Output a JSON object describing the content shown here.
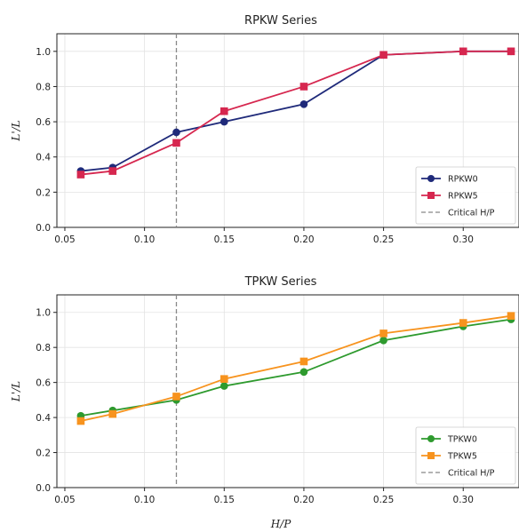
{
  "chart_data": [
    {
      "type": "line",
      "title": "RPKW Series",
      "xlabel": "",
      "ylabel": "L'/L",
      "xlim": [
        0.045,
        0.335
      ],
      "ylim": [
        0.0,
        1.1
      ],
      "x_ticks": [
        "0.05",
        "0.10",
        "0.15",
        "0.20",
        "0.25",
        "0.30"
      ],
      "y_ticks": [
        "0.0",
        "0.2",
        "0.4",
        "0.6",
        "0.8",
        "1.0"
      ],
      "grid": true,
      "legend_position": "lower-right",
      "x": [
        0.06,
        0.08,
        0.12,
        0.15,
        0.2,
        0.25,
        0.3,
        0.33
      ],
      "series": [
        {
          "name": "RPKW0",
          "color": "#1f2a7a",
          "marker": "circle",
          "values": [
            0.32,
            0.34,
            0.54,
            0.6,
            0.7,
            0.98,
            1.0,
            1.0
          ]
        },
        {
          "name": "RPKW5",
          "color": "#d6274f",
          "marker": "square",
          "values": [
            0.3,
            0.32,
            0.48,
            0.66,
            0.8,
            0.98,
            1.0,
            1.0
          ]
        }
      ],
      "reference_line": {
        "name": "Critical H/P",
        "x": 0.12,
        "color": "#888888",
        "style": "dashed"
      }
    },
    {
      "type": "line",
      "title": "TPKW Series",
      "xlabel": "H/P",
      "ylabel": "L'/L",
      "xlim": [
        0.045,
        0.335
      ],
      "ylim": [
        0.0,
        1.1
      ],
      "x_ticks": [
        "0.05",
        "0.10",
        "0.15",
        "0.20",
        "0.25",
        "0.30"
      ],
      "y_ticks": [
        "0.0",
        "0.2",
        "0.4",
        "0.6",
        "0.8",
        "1.0"
      ],
      "grid": true,
      "legend_position": "lower-right",
      "x": [
        0.06,
        0.08,
        0.12,
        0.15,
        0.2,
        0.25,
        0.3,
        0.33
      ],
      "series": [
        {
          "name": "TPKW0",
          "color": "#2e9a2e",
          "marker": "circle",
          "values": [
            0.41,
            0.44,
            0.5,
            0.58,
            0.66,
            0.84,
            0.92,
            0.96
          ]
        },
        {
          "name": "TPKW5",
          "color": "#f7931e",
          "marker": "square",
          "values": [
            0.38,
            0.42,
            0.52,
            0.62,
            0.72,
            0.88,
            0.94,
            0.98
          ]
        }
      ],
      "reference_line": {
        "name": "Critical H/P",
        "x": 0.12,
        "color": "#888888",
        "style": "dashed"
      }
    }
  ]
}
